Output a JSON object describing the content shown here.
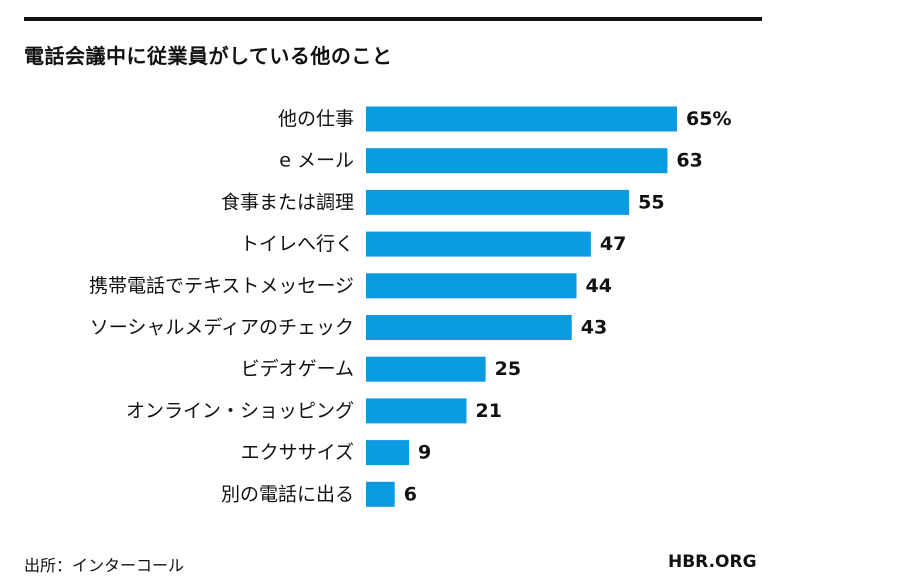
{
  "chart_data": {
    "type": "bar",
    "orientation": "horizontal",
    "title": "電話会議中に従業員がしている他のこと",
    "xlabel": "",
    "ylabel": "",
    "xlim": [
      0,
      65
    ],
    "grid": false,
    "legend": "none",
    "categories": [
      "他の仕事",
      "e メール",
      "食事または調理",
      "トイレへ行く",
      "携帯電話でテキストメッセージ",
      "ソーシャルメディアのチェック",
      "ビデオゲーム",
      "オンライン・ショッピング",
      "エクササイズ",
      "別の電話に出る"
    ],
    "values": [
      65,
      63,
      55,
      47,
      44,
      43,
      25,
      21,
      9,
      6
    ],
    "value_labels": [
      "65%",
      "63",
      "55",
      "47",
      "44",
      "43",
      "25",
      "21",
      "9",
      "6"
    ],
    "bar_color": "#0a9ae0"
  },
  "footer": {
    "source": "出所：インターコール",
    "brand": "HBR.ORG"
  },
  "colors": {
    "text": "#111111",
    "rule": "#111111",
    "bar": "#0a9ae0"
  }
}
